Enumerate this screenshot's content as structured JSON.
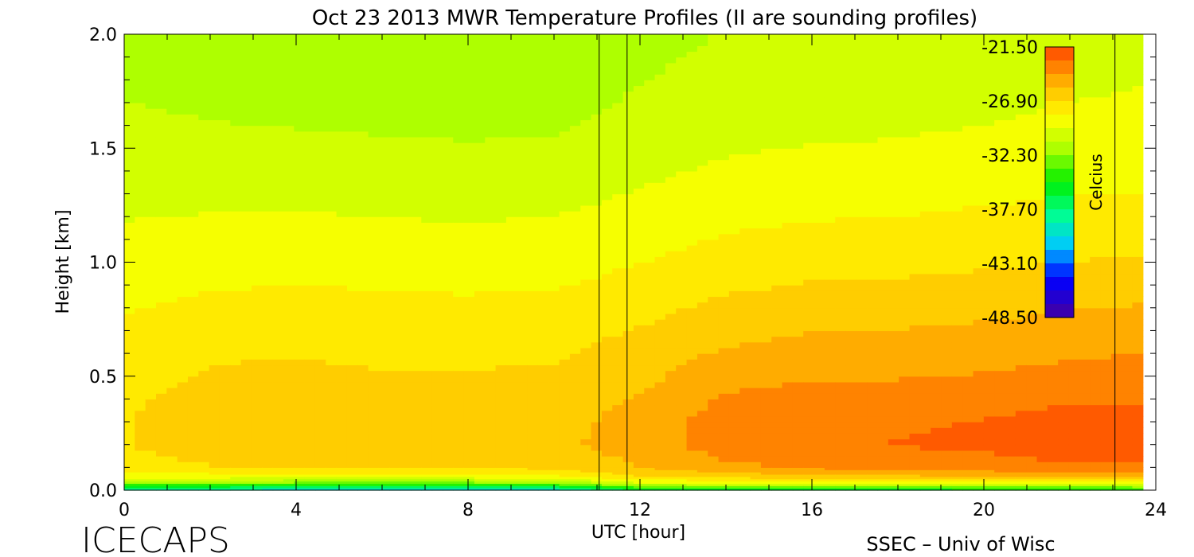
{
  "chart_data": {
    "type": "heatmap",
    "title": "Oct 23 2013 MWR Temperature Profiles (II are sounding profiles)",
    "xlabel": "UTC [hour]",
    "ylabel": "Height [km]",
    "xlim": [
      0,
      24
    ],
    "ylim": [
      0,
      2.0
    ],
    "x_ticks": [
      0,
      4,
      8,
      12,
      16,
      20,
      24
    ],
    "x_tick_labels": [
      "0",
      "4",
      "8",
      "12",
      "16",
      "20",
      "24"
    ],
    "y_ticks": [
      0.0,
      0.5,
      1.0,
      1.5,
      2.0
    ],
    "y_tick_labels": [
      "0.0",
      "0.5",
      "1.0",
      "1.5",
      "2.0"
    ],
    "colorbar": {
      "label": "Celcius",
      "min": -48.5,
      "max": -21.5,
      "ticks": [
        -21.5,
        -26.9,
        -32.3,
        -37.7,
        -43.1,
        -48.5
      ],
      "tick_labels": [
        "-21.50",
        "-26.90",
        "-32.30",
        "-37.70",
        "-43.10",
        "-48.50"
      ],
      "colors": [
        "#3a00b0",
        "#0000ff",
        "#00c8ff",
        "#00ff90",
        "#00ee00",
        "#aaff00",
        "#ffff00",
        "#ffbb00",
        "#ff5a00"
      ]
    },
    "sounding_lines_hours": [
      11.05,
      11.7,
      23.05
    ],
    "data_end_hour": 23.7,
    "heights_km": [
      0.0,
      0.03,
      0.06,
      0.1,
      0.2,
      0.3,
      0.4,
      0.5,
      0.7,
      1.0,
      1.3,
      1.6,
      2.0
    ],
    "hours": [
      0,
      2,
      4,
      6,
      8,
      10,
      12,
      14,
      16,
      18,
      20,
      22,
      23.7
    ],
    "temperature_c": [
      [
        -40.0,
        -40.0,
        -40.5,
        -41.0,
        -41.0,
        -40.5,
        -37.0,
        -37.0,
        -36.5,
        -36.5,
        -36.0,
        -36.0,
        -35.5
      ],
      [
        -32.5,
        -32.5,
        -33.0,
        -33.0,
        -33.0,
        -32.5,
        -30.0,
        -29.5,
        -29.5,
        -29.5,
        -29.0,
        -29.0,
        -29.0
      ],
      [
        -29.0,
        -29.0,
        -29.0,
        -29.0,
        -29.0,
        -28.5,
        -27.0,
        -26.5,
        -26.0,
        -26.0,
        -25.5,
        -25.5,
        -25.5
      ],
      [
        -27.5,
        -27.0,
        -27.0,
        -27.0,
        -27.0,
        -26.5,
        -25.5,
        -24.5,
        -24.0,
        -23.5,
        -23.5,
        -23.0,
        -23.0
      ],
      [
        -27.0,
        -26.0,
        -26.0,
        -26.0,
        -26.0,
        -25.8,
        -25.0,
        -23.5,
        -23.0,
        -22.8,
        -22.6,
        -22.0,
        -22.3
      ],
      [
        -27.0,
        -26.0,
        -26.0,
        -26.2,
        -26.0,
        -26.0,
        -25.0,
        -23.5,
        -23.0,
        -23.0,
        -22.8,
        -22.2,
        -22.5
      ],
      [
        -27.2,
        -26.3,
        -26.2,
        -26.4,
        -26.4,
        -26.3,
        -25.4,
        -24.0,
        -23.6,
        -23.6,
        -23.4,
        -23.0,
        -23.0
      ],
      [
        -27.5,
        -26.7,
        -26.6,
        -26.8,
        -26.8,
        -26.7,
        -25.9,
        -24.7,
        -24.3,
        -24.3,
        -24.1,
        -23.8,
        -23.6
      ],
      [
        -28.0,
        -27.5,
        -27.3,
        -27.5,
        -27.5,
        -27.4,
        -26.8,
        -26.0,
        -25.6,
        -25.5,
        -25.3,
        -25.0,
        -24.8
      ],
      [
        -29.0,
        -28.8,
        -28.7,
        -28.8,
        -28.9,
        -28.8,
        -28.3,
        -27.7,
        -27.4,
        -27.3,
        -27.1,
        -26.9,
        -26.7
      ],
      [
        -30.0,
        -29.9,
        -29.9,
        -30.0,
        -30.1,
        -30.0,
        -29.5,
        -29.0,
        -28.8,
        -28.7,
        -28.5,
        -28.3,
        -28.2
      ],
      [
        -30.8,
        -30.9,
        -31.0,
        -31.1,
        -31.2,
        -31.1,
        -30.6,
        -30.1,
        -29.9,
        -29.8,
        -29.6,
        -29.4,
        -29.3
      ],
      [
        -31.3,
        -31.6,
        -31.8,
        -31.9,
        -32.0,
        -31.9,
        -31.4,
        -30.9,
        -30.7,
        -30.5,
        -30.3,
        -30.2,
        -30.0
      ]
    ]
  },
  "logo_text": "ICECAPS",
  "credit_text": "SSEC – Univ of Wisc"
}
